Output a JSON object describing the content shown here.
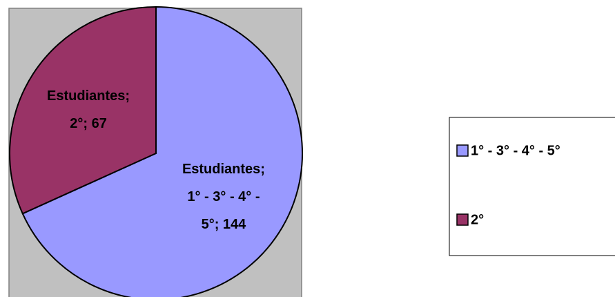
{
  "chart_data": {
    "type": "pie",
    "categories": [
      "1° - 3° - 4° - 5°",
      "2°"
    ],
    "values": [
      144,
      67
    ],
    "value_labels": [
      "Estudiantes;\n1° - 3° - 4° -\n5°; 144",
      "Estudiantes;\n2°; 67"
    ],
    "colors": [
      "#9999ff",
      "#993366"
    ],
    "legend": "right"
  }
}
